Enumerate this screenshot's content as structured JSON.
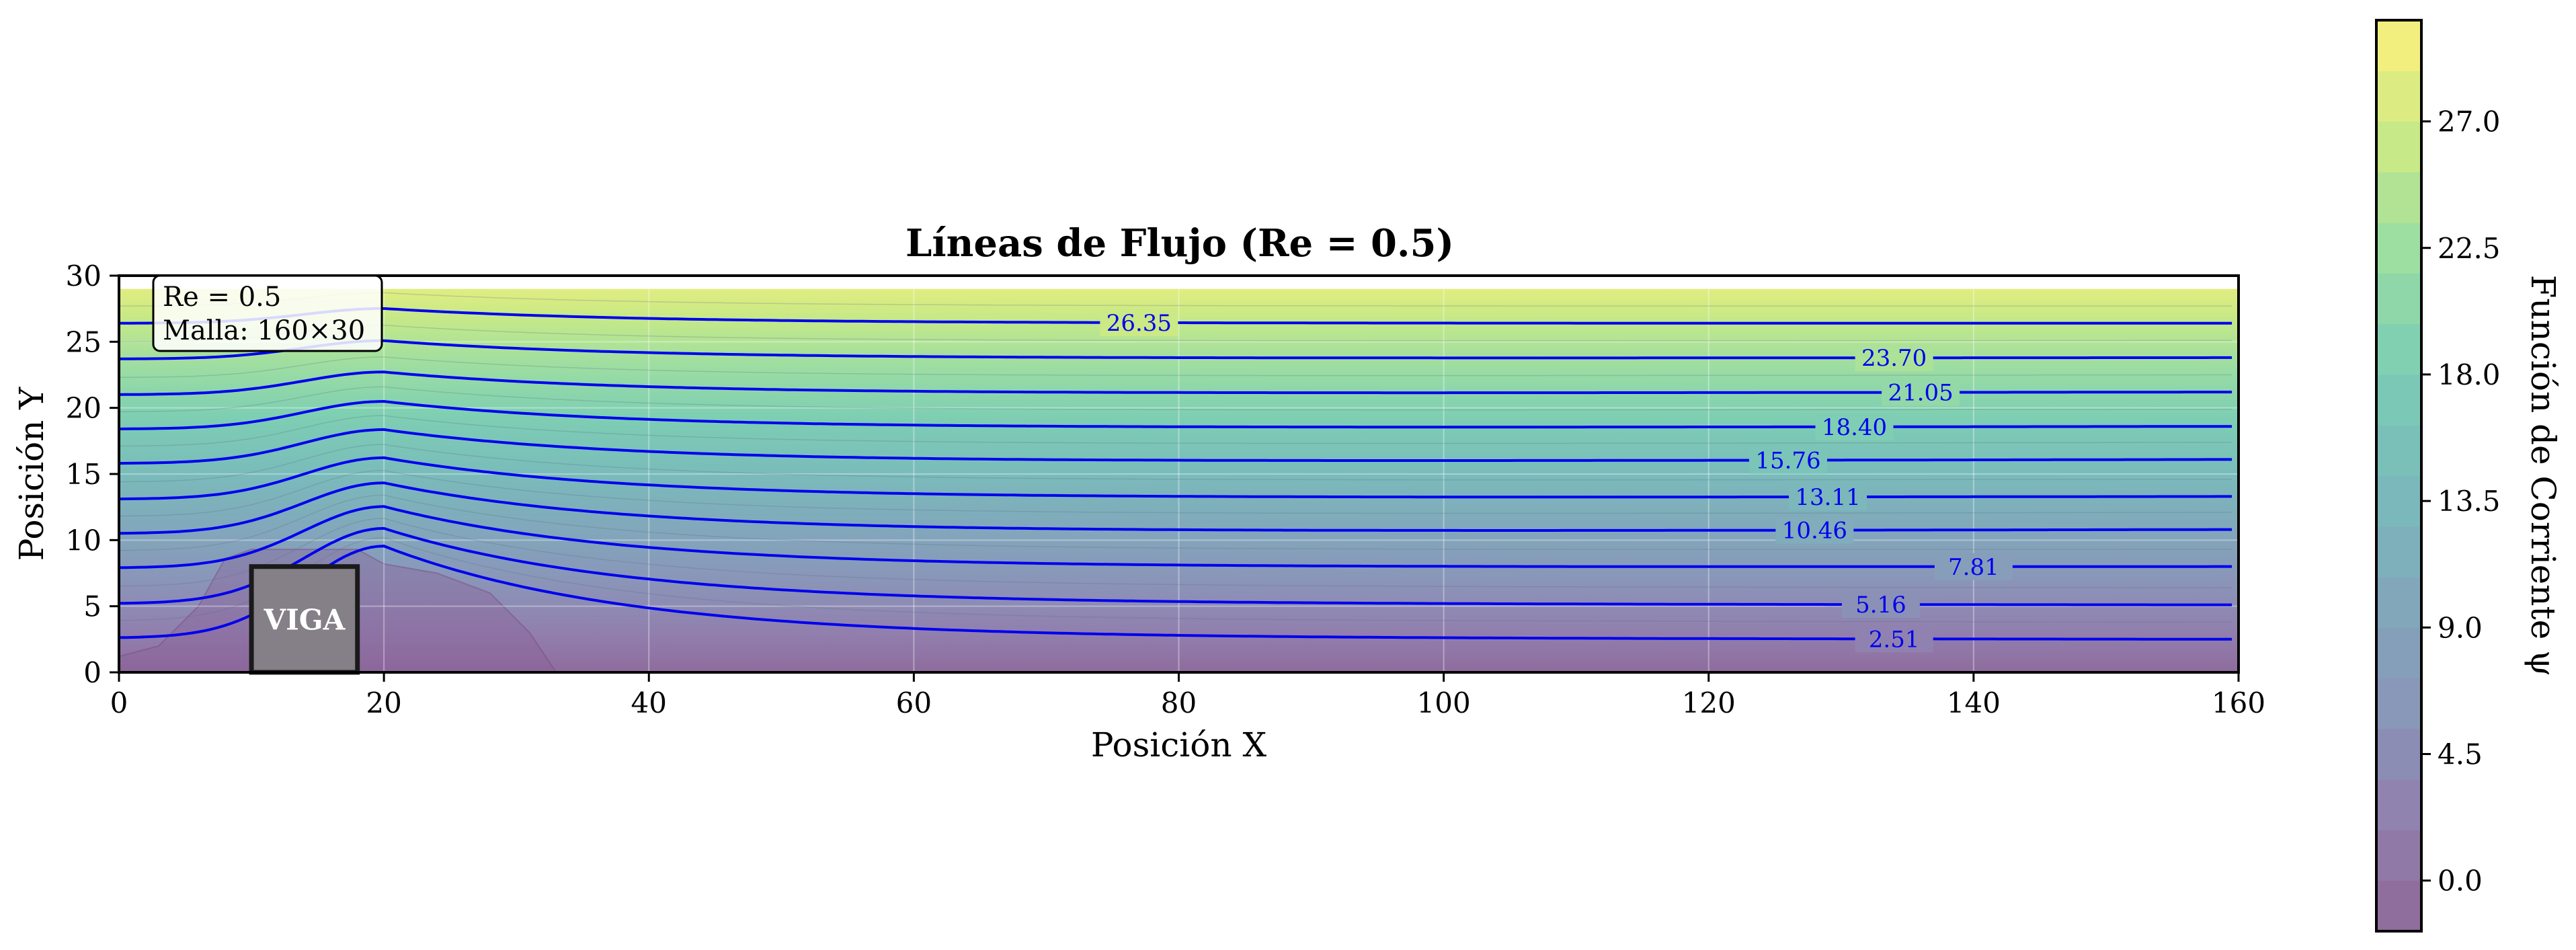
{
  "chart_data": {
    "type": "contour",
    "title": "Líneas de Flujo (Re = 0.5)",
    "xlabel": "Posición X",
    "ylabel": "Posición Y",
    "xlim": [
      0,
      160
    ],
    "ylim": [
      0,
      30
    ],
    "x_ticks": [
      "0",
      "20",
      "40",
      "60",
      "80",
      "100",
      "120",
      "140",
      "160"
    ],
    "y_ticks": [
      "0",
      "5",
      "10",
      "15",
      "20",
      "25",
      "30"
    ],
    "grid": true,
    "info_box": [
      "Re = 0.5",
      "Malla: 160×30"
    ],
    "obstacle": {
      "label": "VIGA",
      "x": [
        10,
        18
      ],
      "y": [
        0,
        8
      ]
    },
    "colorbar": {
      "label": "Función de Corriente ψ",
      "colormap": "viridis",
      "range": [
        -1.8,
        30.6
      ],
      "ticks": [
        "0.0",
        "4.5",
        "9.0",
        "13.5",
        "18.0",
        "22.5",
        "27.0"
      ]
    },
    "contour_line_color": "#0000ee",
    "streamlines": [
      {
        "level": "2.51",
        "label_x": 134,
        "start_y": 2.6,
        "end_y": 2.5
      },
      {
        "level": "5.16",
        "label_x": 133,
        "start_y": 5.2,
        "end_y": 5.1
      },
      {
        "level": "7.81",
        "label_x": 140,
        "start_y": 7.9,
        "end_y": 8.0
      },
      {
        "level": "10.46",
        "label_x": 128,
        "start_y": 10.5,
        "end_y": 10.8
      },
      {
        "level": "13.11",
        "label_x": 129,
        "start_y": 13.1,
        "end_y": 13.3
      },
      {
        "level": "15.76",
        "label_x": 126,
        "start_y": 15.8,
        "end_y": 16.1
      },
      {
        "level": "18.40",
        "label_x": 131,
        "start_y": 18.4,
        "end_y": 18.6
      },
      {
        "level": "21.05",
        "label_x": 136,
        "start_y": 21.0,
        "end_y": 21.2
      },
      {
        "level": "23.70",
        "label_x": 134,
        "start_y": 23.7,
        "end_y": 23.8
      },
      {
        "level": "26.35",
        "label_x": 77,
        "start_y": 26.4,
        "end_y": 26.4
      }
    ]
  }
}
